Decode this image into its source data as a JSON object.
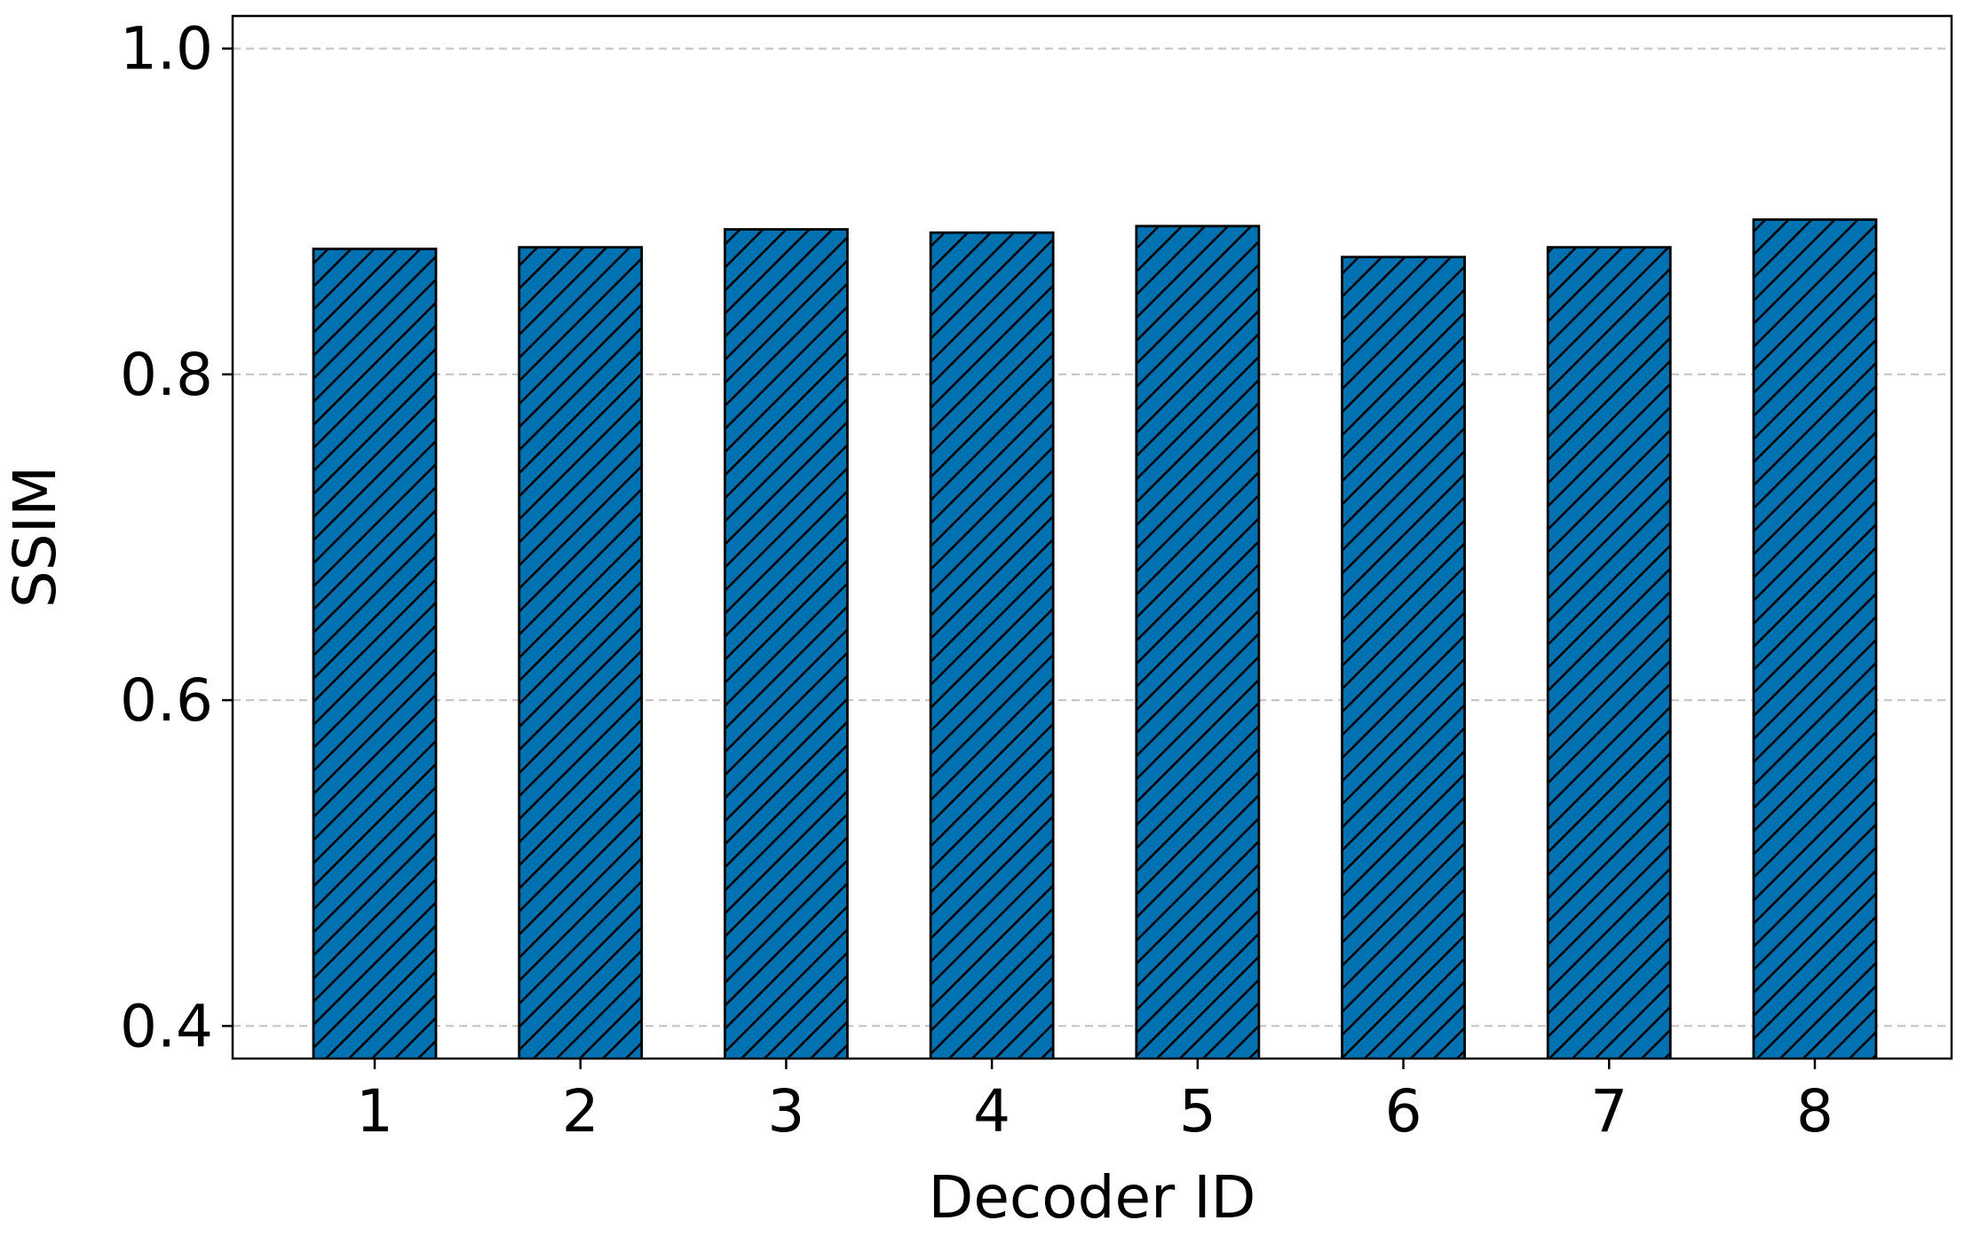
{
  "chart_data": {
    "type": "bar",
    "title": "",
    "xlabel": "Decoder ID",
    "ylabel": "SSIM",
    "categories": [
      "1",
      "2",
      "3",
      "4",
      "5",
      "6",
      "7",
      "8"
    ],
    "values": [
      0.877,
      0.878,
      0.889,
      0.887,
      0.891,
      0.872,
      0.878,
      0.895
    ],
    "ylim": [
      0.38,
      1.02
    ],
    "yticks": [
      "0.4",
      "0.6",
      "0.8",
      "1.0"
    ],
    "grid": "y, dashed",
    "bar_color": "#0072B2",
    "hatch": "diagonal"
  }
}
